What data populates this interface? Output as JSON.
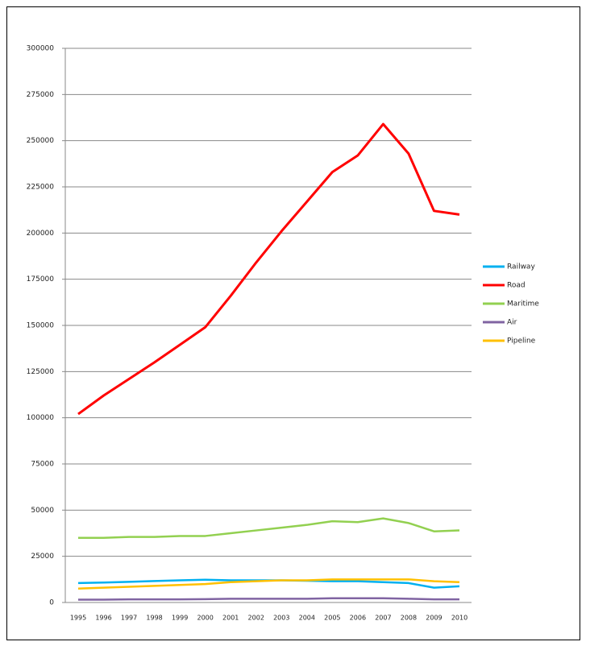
{
  "chart_data": {
    "type": "line",
    "categories": [
      "1995",
      "1996",
      "1997",
      "1998",
      "1999",
      "2000",
      "2001",
      "2002",
      "2003",
      "2004",
      "2005",
      "2006",
      "2007",
      "2008",
      "2009",
      "2010"
    ],
    "series": [
      {
        "name": "Railway",
        "color": "#00b0f0",
        "values": [
          10500,
          10800,
          11200,
          11600,
          12000,
          12300,
          12000,
          12000,
          12000,
          11800,
          11500,
          11500,
          11000,
          10500,
          8000,
          8800
        ]
      },
      {
        "name": "Road",
        "color": "#ff0000",
        "values": [
          102000,
          112000,
          121000,
          130000,
          139500,
          149000,
          166000,
          184000,
          201000,
          217000,
          233000,
          242000,
          259000,
          243000,
          212000,
          210000
        ]
      },
      {
        "name": "Maritime",
        "color": "#92d050",
        "values": [
          35000,
          35000,
          35500,
          35500,
          36000,
          36000,
          37500,
          39000,
          40500,
          42000,
          44000,
          43500,
          45500,
          43000,
          38500,
          39000
        ]
      },
      {
        "name": "Air",
        "color": "#8064a2",
        "values": [
          1500,
          1500,
          1700,
          1700,
          1700,
          1800,
          2000,
          2000,
          2000,
          2000,
          2300,
          2300,
          2300,
          2000,
          1700,
          1700
        ]
      },
      {
        "name": "Pipeline",
        "color": "#ffc000",
        "values": [
          7500,
          8000,
          8500,
          9000,
          9500,
          10000,
          11000,
          11500,
          12000,
          12000,
          12500,
          12500,
          12500,
          12500,
          11500,
          11000
        ]
      }
    ],
    "ylim": [
      0,
      300000
    ],
    "yticks": [
      0,
      25000,
      50000,
      75000,
      100000,
      125000,
      150000,
      175000,
      200000,
      225000,
      250000,
      275000,
      300000
    ],
    "grid": true,
    "legend": "right"
  }
}
